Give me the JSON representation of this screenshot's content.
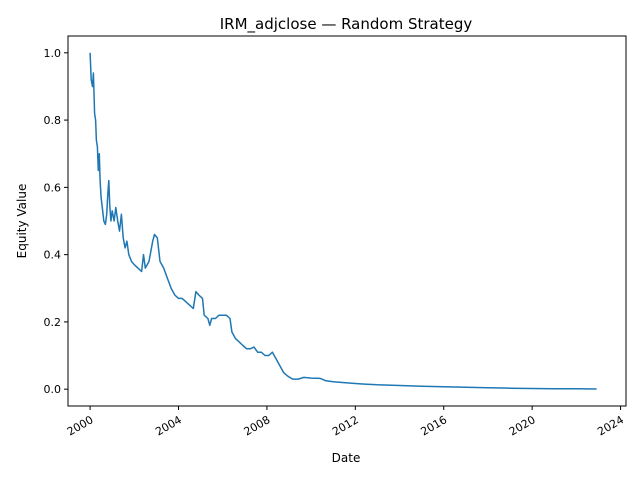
{
  "chart_data": {
    "type": "line",
    "title": "IRM_adjclose — Random Strategy",
    "xlabel": "Date",
    "ylabel": "Equity Value",
    "xlim": [
      "1999-01-01",
      "2024-03-31"
    ],
    "ylim": [
      -0.05,
      1.05
    ],
    "x_ticks": [
      "2000",
      "2004",
      "2008",
      "2012",
      "2016",
      "2020",
      "2024"
    ],
    "y_ticks": [
      "0.0",
      "0.2",
      "0.4",
      "0.6",
      "0.8",
      "1.0"
    ],
    "grid": false,
    "line_color": "#1f77b4",
    "series": [
      {
        "points": [
          [
            "2000-01-01",
            1.0
          ],
          [
            "2000-01-20",
            0.92
          ],
          [
            "2000-02-10",
            0.9
          ],
          [
            "2000-02-25",
            0.94
          ],
          [
            "2000-03-15",
            0.82
          ],
          [
            "2000-04-01",
            0.8
          ],
          [
            "2000-04-15",
            0.74
          ],
          [
            "2000-05-01",
            0.72
          ],
          [
            "2000-05-15",
            0.65
          ],
          [
            "2000-06-01",
            0.7
          ],
          [
            "2000-06-15",
            0.62
          ],
          [
            "2000-07-01",
            0.57
          ],
          [
            "2000-07-20",
            0.54
          ],
          [
            "2000-08-15",
            0.5
          ],
          [
            "2000-09-10",
            0.49
          ],
          [
            "2000-10-01",
            0.52
          ],
          [
            "2000-10-20",
            0.58
          ],
          [
            "2000-11-05",
            0.62
          ],
          [
            "2000-11-20",
            0.55
          ],
          [
            "2000-12-10",
            0.5
          ],
          [
            "2001-01-01",
            0.53
          ],
          [
            "2001-02-01",
            0.5
          ],
          [
            "2001-03-01",
            0.54
          ],
          [
            "2001-04-01",
            0.5
          ],
          [
            "2001-05-01",
            0.47
          ],
          [
            "2001-06-01",
            0.52
          ],
          [
            "2001-07-01",
            0.45
          ],
          [
            "2001-08-01",
            0.42
          ],
          [
            "2001-09-01",
            0.44
          ],
          [
            "2001-10-01",
            0.4
          ],
          [
            "2001-11-15",
            0.38
          ],
          [
            "2002-01-01",
            0.37
          ],
          [
            "2002-03-01",
            0.36
          ],
          [
            "2002-05-01",
            0.35
          ],
          [
            "2002-06-01",
            0.4
          ],
          [
            "2002-07-01",
            0.36
          ],
          [
            "2002-09-01",
            0.38
          ],
          [
            "2002-11-01",
            0.44
          ],
          [
            "2002-12-01",
            0.46
          ],
          [
            "2003-01-15",
            0.45
          ],
          [
            "2003-03-01",
            0.38
          ],
          [
            "2003-05-01",
            0.36
          ],
          [
            "2003-07-01",
            0.33
          ],
          [
            "2003-09-01",
            0.3
          ],
          [
            "2003-11-01",
            0.28
          ],
          [
            "2004-01-01",
            0.27
          ],
          [
            "2004-03-01",
            0.27
          ],
          [
            "2004-05-01",
            0.26
          ],
          [
            "2004-07-01",
            0.25
          ],
          [
            "2004-09-01",
            0.24
          ],
          [
            "2004-10-15",
            0.29
          ],
          [
            "2004-12-01",
            0.28
          ],
          [
            "2005-02-01",
            0.27
          ],
          [
            "2005-03-01",
            0.22
          ],
          [
            "2005-05-01",
            0.21
          ],
          [
            "2005-06-01",
            0.19
          ],
          [
            "2005-07-01",
            0.21
          ],
          [
            "2005-09-01",
            0.21
          ],
          [
            "2005-11-01",
            0.22
          ],
          [
            "2006-01-01",
            0.22
          ],
          [
            "2006-03-01",
            0.22
          ],
          [
            "2006-05-01",
            0.21
          ],
          [
            "2006-06-01",
            0.17
          ],
          [
            "2006-08-01",
            0.15
          ],
          [
            "2006-10-01",
            0.14
          ],
          [
            "2006-12-01",
            0.13
          ],
          [
            "2007-02-01",
            0.12
          ],
          [
            "2007-04-01",
            0.12
          ],
          [
            "2007-06-01",
            0.125
          ],
          [
            "2007-08-01",
            0.11
          ],
          [
            "2007-10-01",
            0.11
          ],
          [
            "2007-12-01",
            0.1
          ],
          [
            "2008-02-01",
            0.1
          ],
          [
            "2008-04-01",
            0.11
          ],
          [
            "2008-06-01",
            0.09
          ],
          [
            "2008-08-01",
            0.07
          ],
          [
            "2008-10-01",
            0.05
          ],
          [
            "2008-12-01",
            0.04
          ],
          [
            "2009-03-01",
            0.03
          ],
          [
            "2009-06-01",
            0.03
          ],
          [
            "2009-09-01",
            0.035
          ],
          [
            "2010-01-01",
            0.033
          ],
          [
            "2010-06-01",
            0.032
          ],
          [
            "2010-09-01",
            0.025
          ],
          [
            "2011-01-01",
            0.022
          ],
          [
            "2011-06-01",
            0.02
          ],
          [
            "2012-01-01",
            0.017
          ],
          [
            "2012-06-01",
            0.015
          ],
          [
            "2013-01-01",
            0.013
          ],
          [
            "2014-01-01",
            0.011
          ],
          [
            "2015-01-01",
            0.009
          ],
          [
            "2016-01-01",
            0.007
          ],
          [
            "2017-01-01",
            0.006
          ],
          [
            "2018-01-01",
            0.004
          ],
          [
            "2019-01-01",
            0.003
          ],
          [
            "2020-01-01",
            0.002
          ],
          [
            "2021-01-01",
            0.0015
          ],
          [
            "2022-01-01",
            0.001
          ],
          [
            "2022-12-01",
            0.0005
          ]
        ]
      }
    ]
  }
}
